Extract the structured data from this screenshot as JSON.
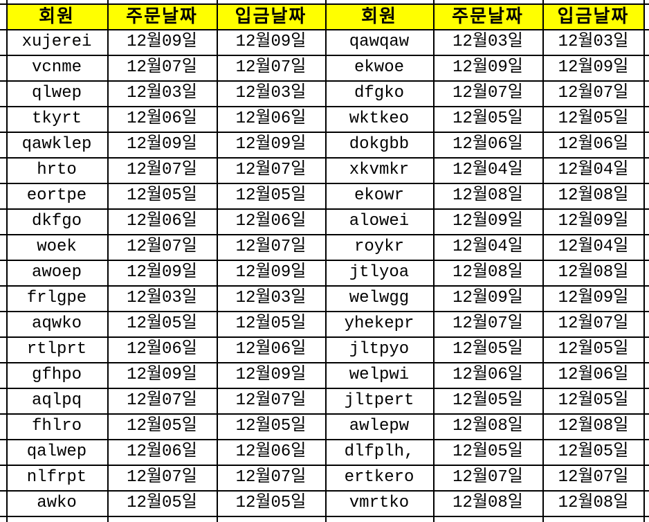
{
  "header": {
    "columns": [
      "회원",
      "주문날짜",
      "입금날짜",
      "회원",
      "주문날짜",
      "입금날짜"
    ]
  },
  "rows": [
    [
      "xujerei",
      "12월09일",
      "12월09일",
      "qawqaw",
      "12월03일",
      "12월03일"
    ],
    [
      "vcnme",
      "12월07일",
      "12월07일",
      "ekwoe",
      "12월09일",
      "12월09일"
    ],
    [
      "qlwep",
      "12월03일",
      "12월03일",
      "dfgko",
      "12월07일",
      "12월07일"
    ],
    [
      "tkyrt",
      "12월06일",
      "12월06일",
      "wktkeo",
      "12월05일",
      "12월05일"
    ],
    [
      "qawklep",
      "12월09일",
      "12월09일",
      "dokgbb",
      "12월06일",
      "12월06일"
    ],
    [
      "hrto",
      "12월07일",
      "12월07일",
      "xkvmkr",
      "12월04일",
      "12월04일"
    ],
    [
      "eortpe",
      "12월05일",
      "12월05일",
      "ekowr",
      "12월08일",
      "12월08일"
    ],
    [
      "dkfgo",
      "12월06일",
      "12월06일",
      "alowei",
      "12월09일",
      "12월09일"
    ],
    [
      "woek",
      "12월07일",
      "12월07일",
      "roykr",
      "12월04일",
      "12월04일"
    ],
    [
      "awoep",
      "12월09일",
      "12월09일",
      "jtlyoa",
      "12월08일",
      "12월08일"
    ],
    [
      "frlgpe",
      "12월03일",
      "12월03일",
      "welwgg",
      "12월09일",
      "12월09일"
    ],
    [
      "aqwko",
      "12월05일",
      "12월05일",
      "yhekepr",
      "12월07일",
      "12월07일"
    ],
    [
      "rtlprt",
      "12월06일",
      "12월06일",
      "jltpyo",
      "12월05일",
      "12월05일"
    ],
    [
      "gfhpo",
      "12월09일",
      "12월09일",
      "welpwi",
      "12월06일",
      "12월06일"
    ],
    [
      "aqlpq",
      "12월07일",
      "12월07일",
      "jltpert",
      "12월05일",
      "12월05일"
    ],
    [
      "fhlro",
      "12월05일",
      "12월05일",
      "awlepw",
      "12월08일",
      "12월08일"
    ],
    [
      "qalwep",
      "12월06일",
      "12월06일",
      "dlfplh,",
      "12월05일",
      "12월05일"
    ],
    [
      "nlfrpt",
      "12월07일",
      "12월07일",
      "ertkero",
      "12월07일",
      "12월07일"
    ],
    [
      "awko",
      "12월05일",
      "12월05일",
      "vmrtko",
      "12월08일",
      "12월08일"
    ]
  ],
  "colors": {
    "header_bg": "#ffff00",
    "grid": "#000000",
    "text": "#000000",
    "page_bg": "#ffffff"
  }
}
